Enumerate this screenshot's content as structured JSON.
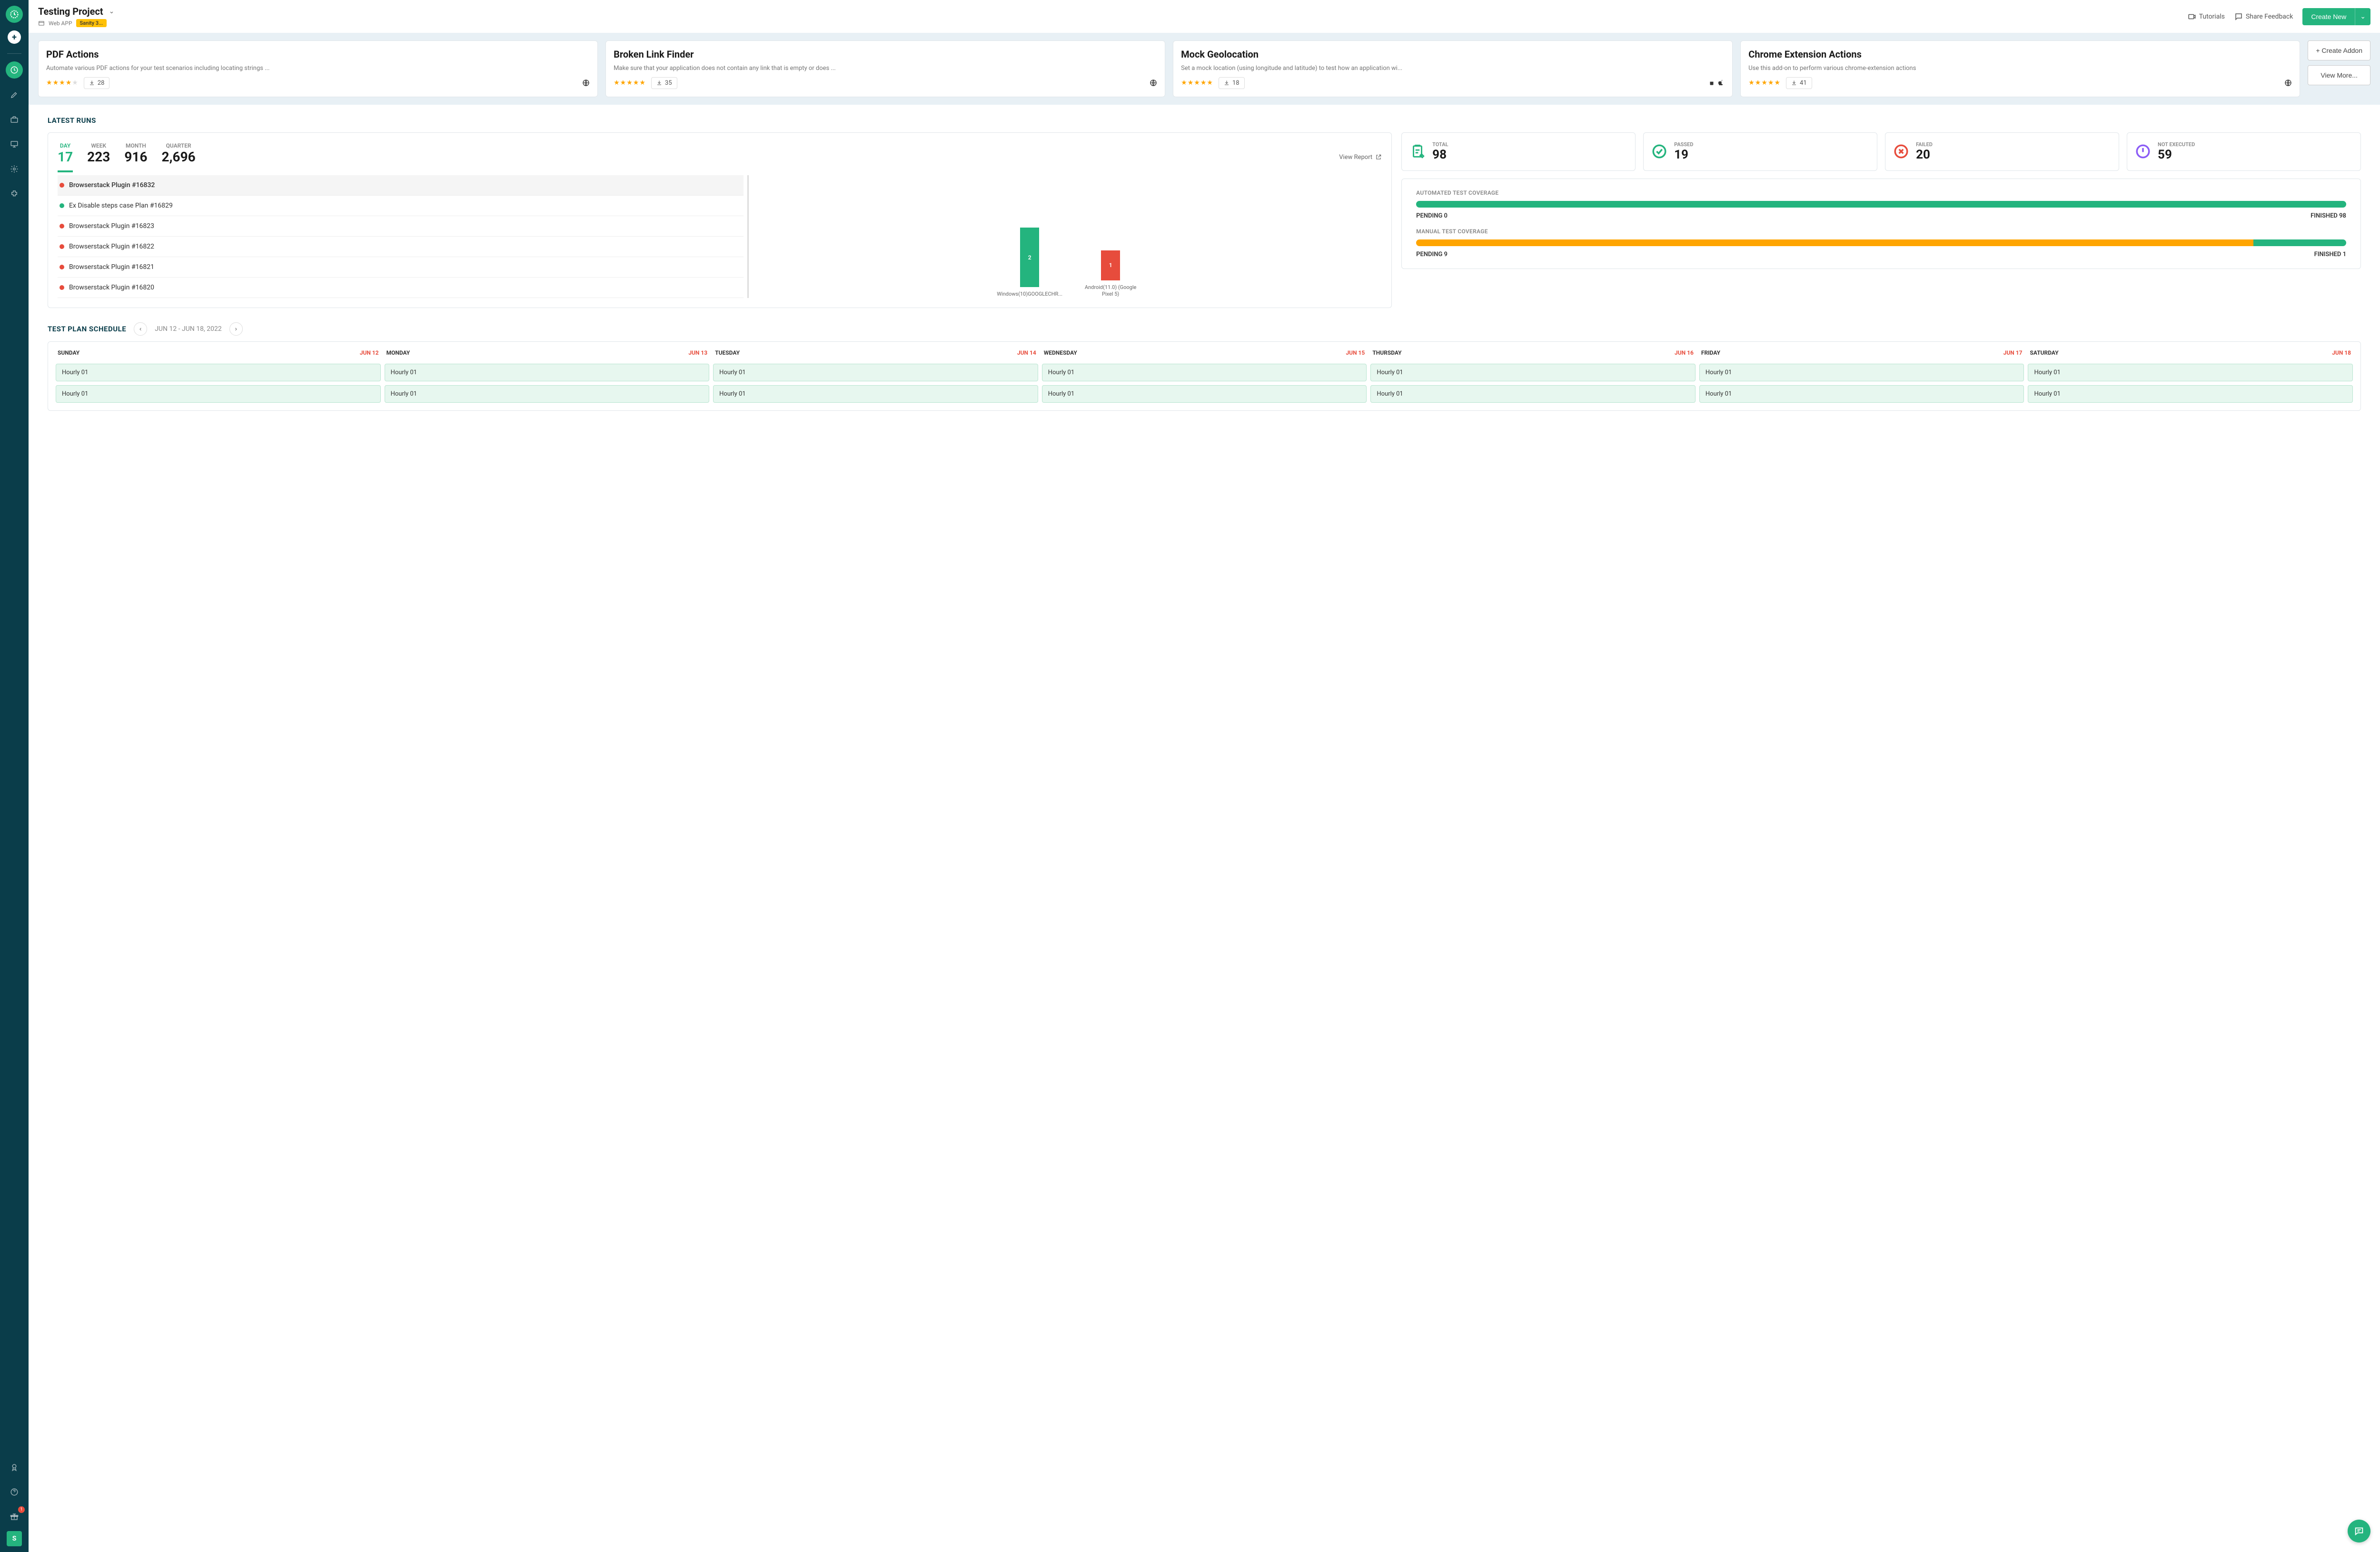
{
  "project": {
    "title": "Testing Project",
    "type": "Web APP",
    "tag": "Sanity 3..."
  },
  "topbar": {
    "tutorials": "Tutorials",
    "feedback": "Share Feedback",
    "create": "Create New"
  },
  "addons": [
    {
      "title": "PDF Actions",
      "desc": "Automate various PDF actions for your test scenarios including locating strings ...",
      "stars": 4,
      "downloads": "28",
      "platforms": [
        "web"
      ]
    },
    {
      "title": "Broken Link Finder",
      "desc": "Make sure that your application does not contain any link that is empty or does ...",
      "stars": 5,
      "downloads": "35",
      "platforms": [
        "web"
      ]
    },
    {
      "title": "Mock Geolocation",
      "desc": "Set a mock location (using longitude and latitude) to test how an application wi...",
      "stars": 5,
      "downloads": "18",
      "platforms": [
        "android",
        "ios"
      ]
    },
    {
      "title": "Chrome Extension Actions",
      "desc": "Use this add-on to perform various chrome-extension actions",
      "stars": 5,
      "downloads": "41",
      "platforms": [
        "web"
      ]
    }
  ],
  "addonButtons": {
    "create": "+ Create Addon",
    "more": "View More..."
  },
  "sections": {
    "latestRuns": "LATEST RUNS",
    "schedule": "TEST PLAN SCHEDULE"
  },
  "periods": [
    {
      "label": "DAY",
      "value": "17",
      "active": true
    },
    {
      "label": "WEEK",
      "value": "223"
    },
    {
      "label": "MONTH",
      "value": "916"
    },
    {
      "label": "QUARTER",
      "value": "2,696"
    }
  ],
  "viewReport": "View Report",
  "runs": [
    {
      "status": "red",
      "name": "Browserstack Plugin #16832",
      "active": true
    },
    {
      "status": "green",
      "name": "Ex Disable steps case Plan #16829"
    },
    {
      "status": "red",
      "name": "Browserstack Plugin #16823"
    },
    {
      "status": "red",
      "name": "Browserstack Plugin #16822"
    },
    {
      "status": "red",
      "name": "Browserstack Plugin #16821"
    },
    {
      "status": "red",
      "name": "Browserstack Plugin #16820"
    }
  ],
  "chart": {
    "bars": [
      {
        "value": "2",
        "height": 125,
        "color": "#24b47e",
        "label": "Windows(10)GOOGLECHR..."
      },
      {
        "value": "1",
        "height": 63,
        "color": "#e74c3c",
        "label": "Android(11.0) (Google Pixel 5)"
      }
    ]
  },
  "stats": [
    {
      "label": "TOTAL",
      "value": "98",
      "color": "#24b47e",
      "icon": "clipboard"
    },
    {
      "label": "PASSED",
      "value": "19",
      "color": "#24b47e",
      "icon": "check"
    },
    {
      "label": "FAILED",
      "value": "20",
      "color": "#e74c3c",
      "icon": "x"
    },
    {
      "label": "NOT EXECUTED",
      "value": "59",
      "color": "#8b5cf6",
      "icon": "alert"
    }
  ],
  "coverage": {
    "auto": {
      "label": "AUTOMATED TEST COVERAGE",
      "pending": "PENDING 0",
      "finished": "FINISHED 98",
      "pendingPct": 0,
      "finishedPct": 100
    },
    "manual": {
      "label": "MANUAL TEST COVERAGE",
      "pending": "PENDING 9",
      "finished": "FINISHED 1",
      "pendingPct": 90,
      "finishedPct": 10
    }
  },
  "schedule": {
    "range": "JUN 12 - JUN 18, 2022",
    "days": [
      {
        "name": "SUNDAY",
        "date": "JUN 12",
        "events": [
          "Hourly 01",
          "Hourly 01"
        ]
      },
      {
        "name": "MONDAY",
        "date": "JUN 13",
        "events": [
          "Hourly 01",
          "Hourly 01"
        ]
      },
      {
        "name": "TUESDAY",
        "date": "JUN 14",
        "events": [
          "Hourly 01",
          "Hourly 01"
        ]
      },
      {
        "name": "WEDNESDAY",
        "date": "JUN 15",
        "events": [
          "Hourly 01",
          "Hourly 01"
        ]
      },
      {
        "name": "THURSDAY",
        "date": "JUN 16",
        "events": [
          "Hourly 01",
          "Hourly 01"
        ]
      },
      {
        "name": "FRIDAY",
        "date": "JUN 17",
        "events": [
          "Hourly 01",
          "Hourly 01"
        ]
      },
      {
        "name": "SATURDAY",
        "date": "JUN 18",
        "events": [
          "Hourly 01",
          "Hourly 01"
        ]
      }
    ]
  },
  "sidebarBadge": "1",
  "sidebarUser": "S"
}
